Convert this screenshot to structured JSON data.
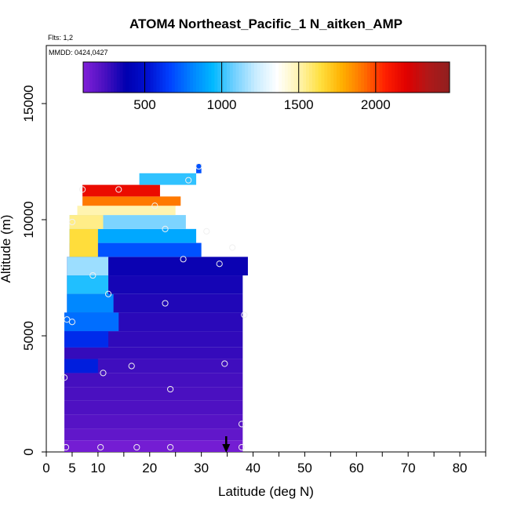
{
  "chart_data": {
    "type": "heatmap",
    "title": "ATOM4 Northeast_Pacific_1 N_aitken_AMP",
    "flights_label": "Flts: 1,2",
    "mmdd_label": "MMDD: 0424,0427",
    "xlabel": "Latitude (deg N)",
    "ylabel": "Altitude (m)",
    "xlim": [
      0,
      85
    ],
    "ylim": [
      0,
      17500
    ],
    "xticks": [
      0,
      5,
      10,
      20,
      30,
      40,
      50,
      60,
      70,
      80
    ],
    "xtick_labels": [
      "0",
      "5",
      "10",
      "20",
      "30",
      "40",
      "50",
      "60",
      "70",
      "80"
    ],
    "yticks": [
      0,
      5000,
      10000,
      15000
    ],
    "ytick_labels": [
      "0",
      "5000",
      "10000",
      "15000"
    ],
    "colorbar": {
      "range": [
        100,
        2480
      ],
      "ticks": [
        500,
        1000,
        1500,
        2000
      ],
      "tick_labels": [
        "500",
        "1000",
        "1500",
        "2000"
      ],
      "colors": [
        "#8020d8",
        "#4a10c0",
        "#0000b0",
        "#0010d0",
        "#0040ff",
        "#0080ff",
        "#00b8ff",
        "#70d0ff",
        "#c8ecff",
        "#ffffff",
        "#fff4b0",
        "#ffe040",
        "#ffb000",
        "#ff7000",
        "#ff2000",
        "#e00000",
        "#b01818",
        "#902020"
      ]
    },
    "cells": [
      {
        "y0": 0,
        "y1": 500,
        "x0": 3.5,
        "x1": 38,
        "v": 130
      },
      {
        "y0": 500,
        "y1": 1000,
        "x0": 3.5,
        "x1": 38,
        "v": 180
      },
      {
        "y0": 1000,
        "y1": 1600,
        "x0": 3.5,
        "x1": 38,
        "v": 210
      },
      {
        "y0": 1600,
        "y1": 2200,
        "x0": 3.5,
        "x1": 38,
        "v": 230
      },
      {
        "y0": 2200,
        "y1": 2800,
        "x0": 3.5,
        "x1": 38,
        "v": 240
      },
      {
        "y0": 2800,
        "y1": 3400,
        "x0": 3.5,
        "x1": 38,
        "v": 250
      },
      {
        "y0": 3400,
        "y1": 4000,
        "x0": 3.5,
        "x1": 38,
        "v": 260
      },
      {
        "y0": 4000,
        "y1": 4500,
        "x0": 3.5,
        "x1": 38,
        "v": 280
      },
      {
        "y0": 4500,
        "y1": 5200,
        "x0": 3.5,
        "x1": 38,
        "v": 290
      },
      {
        "y0": 5200,
        "y1": 6000,
        "x0": 3.5,
        "x1": 38,
        "v": 300
      },
      {
        "y0": 6000,
        "y1": 6800,
        "x0": 4,
        "x1": 38,
        "v": 320
      },
      {
        "y0": 6800,
        "y1": 7600,
        "x0": 4,
        "x1": 38,
        "v": 340
      },
      {
        "y0": 7600,
        "y1": 8400,
        "x0": 4,
        "x1": 39,
        "v": 360
      },
      {
        "y0": 3400,
        "y1": 4000,
        "x0": 3.5,
        "x1": 10,
        "v": 560
      },
      {
        "y0": 4500,
        "y1": 5200,
        "x0": 3.5,
        "x1": 12,
        "v": 600
      },
      {
        "y0": 5200,
        "y1": 6000,
        "x0": 3.5,
        "x1": 14,
        "v": 760
      },
      {
        "y0": 6000,
        "y1": 6800,
        "x0": 4,
        "x1": 13,
        "v": 820
      },
      {
        "y0": 6800,
        "y1": 7600,
        "x0": 4,
        "x1": 12,
        "v": 980
      },
      {
        "y0": 7600,
        "y1": 8400,
        "x0": 4,
        "x1": 12,
        "v": 1150
      },
      {
        "y0": 8400,
        "y1": 9000,
        "x0": 4.5,
        "x1": 30,
        "v": 700
      },
      {
        "y0": 9000,
        "y1": 9600,
        "x0": 4.5,
        "x1": 29,
        "v": 900
      },
      {
        "y0": 9600,
        "y1": 10200,
        "x0": 4.5,
        "x1": 27,
        "v": 1100
      },
      {
        "y0": 8400,
        "y1": 9600,
        "x0": 4.5,
        "x1": 10,
        "v": 1650
      },
      {
        "y0": 9600,
        "y1": 10200,
        "x0": 4.5,
        "x1": 11,
        "v": 1550
      },
      {
        "y0": 10200,
        "y1": 10600,
        "x0": 6,
        "x1": 25,
        "v": 1500
      },
      {
        "y0": 10600,
        "y1": 11000,
        "x0": 7,
        "x1": 26,
        "v": 1900
      },
      {
        "y0": 11000,
        "y1": 11500,
        "x0": 7,
        "x1": 22,
        "v": 2150
      },
      {
        "y0": 11500,
        "y1": 12000,
        "x0": 18,
        "x1": 29,
        "v": 1000
      },
      {
        "y0": 12000,
        "y1": 12400,
        "x0": 29,
        "x1": 30,
        "v": 700
      }
    ],
    "observations": [
      {
        "x": 3.8,
        "y": 200
      },
      {
        "x": 10.5,
        "y": 200
      },
      {
        "x": 17.5,
        "y": 200
      },
      {
        "x": 24,
        "y": 200
      },
      {
        "x": 37.8,
        "y": 200
      },
      {
        "x": 37.8,
        "y": 1200
      },
      {
        "x": 24,
        "y": 2700
      },
      {
        "x": 3.5,
        "y": 3200
      },
      {
        "x": 11,
        "y": 3400
      },
      {
        "x": 16.5,
        "y": 3700
      },
      {
        "x": 34.5,
        "y": 3800
      },
      {
        "x": 4,
        "y": 5700
      },
      {
        "x": 5,
        "y": 5600
      },
      {
        "x": 38.3,
        "y": 5900
      },
      {
        "x": 23,
        "y": 6400
      },
      {
        "x": 12,
        "y": 6800
      },
      {
        "x": 9,
        "y": 7600
      },
      {
        "x": 33.5,
        "y": 8100
      },
      {
        "x": 26.5,
        "y": 8300
      },
      {
        "x": 36,
        "y": 8800
      },
      {
        "x": 23,
        "y": 9600
      },
      {
        "x": 31,
        "y": 9500
      },
      {
        "x": 5,
        "y": 9900
      },
      {
        "x": 21,
        "y": 10600
      },
      {
        "x": 7,
        "y": 11300
      },
      {
        "x": 14,
        "y": 11300
      },
      {
        "x": 27.5,
        "y": 11700
      },
      {
        "x": 29.5,
        "y": 12300
      }
    ],
    "marker_arrow_x": 34.8,
    "grid": false,
    "legend": "top colorbar"
  }
}
